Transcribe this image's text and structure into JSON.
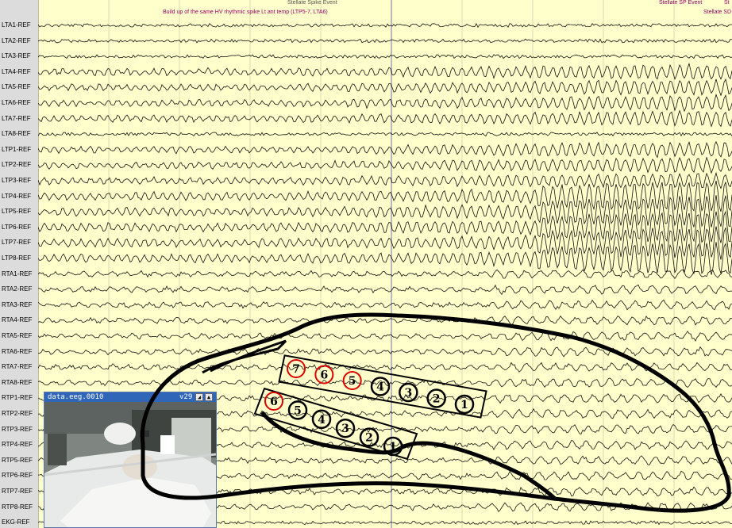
{
  "annotations": {
    "event_top_center": "Stellate Spike Event",
    "event_top_right": "Stellate SP Event",
    "event_top_right_end": "St",
    "buildup_text": "Build up of the same HV rhythmic spike Lt ant temp (LTP5-7, LTA6)",
    "stellate_right": "Stellate SD"
  },
  "channels": [
    "LTA1-REF",
    "LTA2-REF",
    "LTA3-REF",
    "LTA4-REF",
    "LTA5-REF",
    "LTA6-REF",
    "LTA7-REF",
    "LTA8-REF",
    "LTP1-REF",
    "LTP2-REF",
    "LTP3-REF",
    "LTP4-REF",
    "LTP5-REF",
    "LTP6-REF",
    "LTP7-REF",
    "LTP8-REF",
    "RTA1-REF",
    "RTA2-REF",
    "RTA3-REF",
    "RTA4-REF",
    "RTA5-REF",
    "RTA6-REF",
    "RTA7-REF",
    "RTA8-REF",
    "RTP1-REF",
    "RTP2-REF",
    "RTP3-REF",
    "RTP4-REF",
    "RTP5-REF",
    "RTP6-REF",
    "RTP7-REF",
    "RTP8-REF",
    "EKG-REF"
  ],
  "video": {
    "title": "data.eeg.0010",
    "version": "v29",
    "btn_a": "◢",
    "btn_b": "▲"
  },
  "electrodes_upper": [
    "7",
    "6",
    "5",
    "4",
    "3",
    "2",
    "1"
  ],
  "electrodes_lower": [
    "6",
    "5",
    "4",
    "3",
    "2",
    "1"
  ],
  "colors": {
    "background": "#ffffcc",
    "trace": "#111111",
    "highlight_circle": "#dd0000",
    "annotation": "#990066"
  }
}
